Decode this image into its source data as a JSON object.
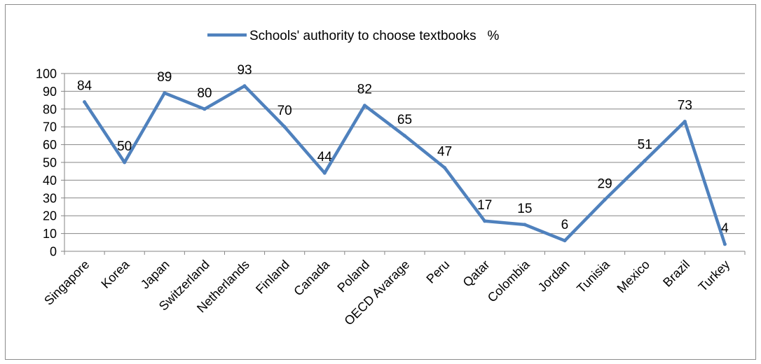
{
  "chart_data": {
    "type": "line",
    "legend": {
      "label": "Schools' authority to choose textbooks   %",
      "position": "top"
    },
    "categories": [
      "Singapore",
      "Korea",
      "Japan",
      "Switzerland",
      "Netherlands",
      "Finland",
      "Canada",
      "Poland",
      "OECD Avarage",
      "Peru",
      "Qatar",
      "Colombia",
      "Jordan",
      "Tunisia",
      "Mexico",
      "Brazil",
      "Turkey"
    ],
    "series": [
      {
        "name": "Schools' authority to choose textbooks   %",
        "values": [
          84,
          50,
          89,
          80,
          93,
          70,
          44,
          82,
          65,
          47,
          17,
          15,
          6,
          29,
          51,
          73,
          4
        ],
        "color": "#4f81bd"
      }
    ],
    "ylim": [
      0,
      100
    ],
    "yticks": [
      0,
      10,
      20,
      30,
      40,
      50,
      60,
      70,
      80,
      90,
      100
    ],
    "grid": true,
    "gridColor": "#868686"
  }
}
